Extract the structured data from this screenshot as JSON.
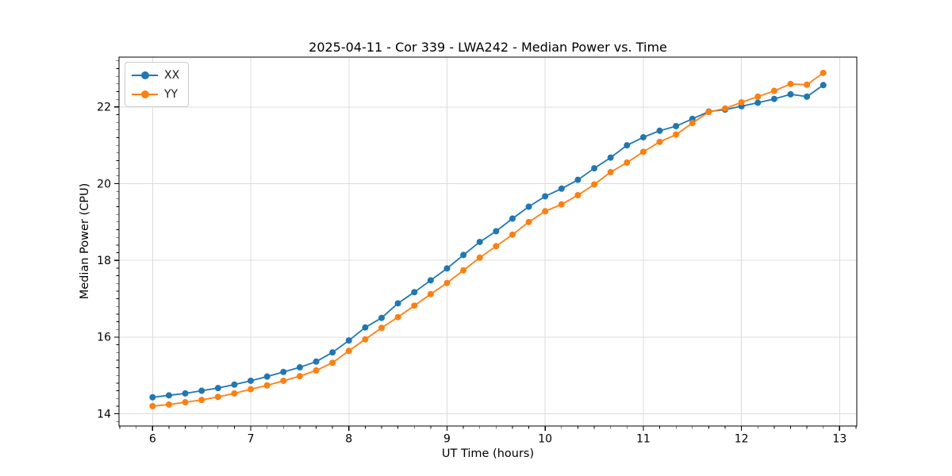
{
  "chart_data": {
    "type": "line",
    "title": "2025-04-11 - Cor 339 - LWA242 - Median Power vs. Time",
    "xlabel": "UT Time (hours)",
    "ylabel": "Median Power (CPU)",
    "xlim": [
      5.658,
      13.175
    ],
    "ylim": [
      13.68,
      23.3
    ],
    "xticks": [
      6,
      7,
      8,
      9,
      10,
      11,
      12,
      13
    ],
    "yticks": [
      14,
      16,
      18,
      20,
      22
    ],
    "x_minor_step": 0.166667,
    "y_minor_step": 0.2,
    "grid": true,
    "legend_position": "upper-left",
    "background": "#ffffff",
    "grid_color": "#dcdcdc",
    "spine_color": "#000000",
    "x": [
      6.0,
      6.1667,
      6.3333,
      6.5,
      6.6667,
      6.8333,
      7.0,
      7.1667,
      7.3333,
      7.5,
      7.6667,
      7.8333,
      8.0,
      8.1667,
      8.3333,
      8.5,
      8.6667,
      8.8333,
      9.0,
      9.1667,
      9.3333,
      9.5,
      9.6667,
      9.8333,
      10.0,
      10.1667,
      10.3333,
      10.5,
      10.6667,
      10.8333,
      11.0,
      11.1667,
      11.3333,
      11.5,
      11.6667,
      11.8333,
      12.0,
      12.1667,
      12.3333,
      12.5,
      12.6667,
      12.8333
    ],
    "series": [
      {
        "name": "XX",
        "color": "#1f77b4",
        "values": [
          14.43,
          14.48,
          14.53,
          14.6,
          14.67,
          14.76,
          14.86,
          14.97,
          15.09,
          15.21,
          15.36,
          15.6,
          15.91,
          16.25,
          16.5,
          16.88,
          17.17,
          17.48,
          17.79,
          18.14,
          18.48,
          18.76,
          19.09,
          19.4,
          19.67,
          19.87,
          20.1,
          20.4,
          20.68,
          21.0,
          21.21,
          21.38,
          21.5,
          21.69,
          21.88,
          21.93,
          22.02,
          22.11,
          22.21,
          22.33,
          22.27,
          22.57
        ]
      },
      {
        "name": "YY",
        "color": "#ff7f0e",
        "values": [
          14.2,
          14.24,
          14.3,
          14.36,
          14.44,
          14.53,
          14.64,
          14.74,
          14.86,
          14.98,
          15.13,
          15.33,
          15.64,
          15.94,
          16.24,
          16.52,
          16.82,
          17.12,
          17.41,
          17.74,
          18.07,
          18.37,
          18.67,
          19.0,
          19.28,
          19.46,
          19.7,
          19.98,
          20.3,
          20.55,
          20.83,
          21.09,
          21.28,
          21.58,
          21.87,
          21.96,
          22.12,
          22.27,
          22.42,
          22.6,
          22.58,
          22.89
        ]
      }
    ]
  }
}
